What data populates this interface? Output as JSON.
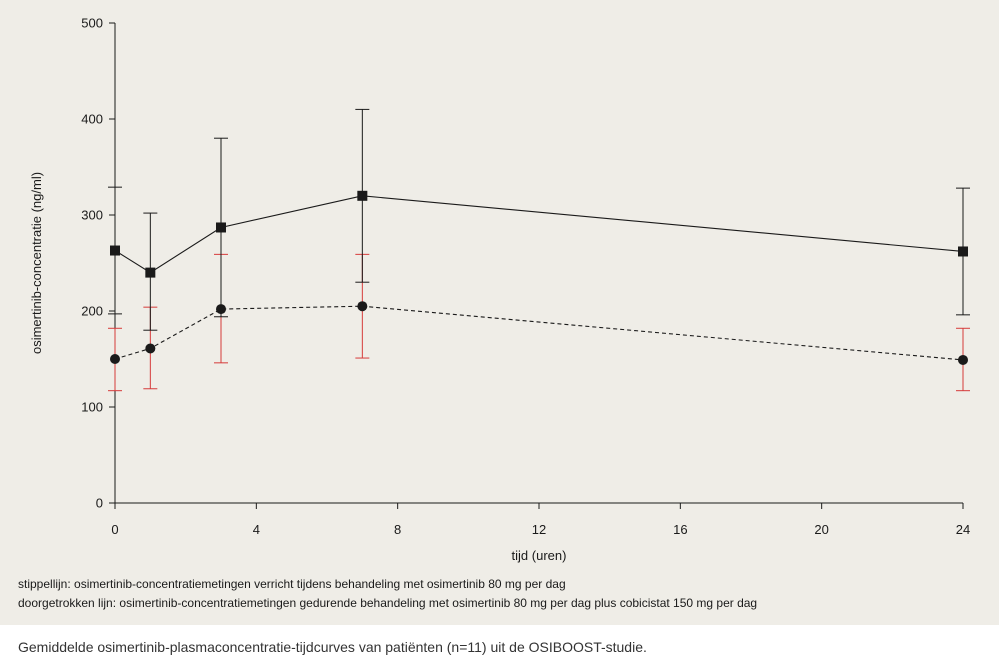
{
  "chart_data": {
    "type": "line",
    "xlabel": "tijd (uren)",
    "ylabel": "osimertinib-concentratie (ng/ml)",
    "xlim": [
      0,
      24
    ],
    "ylim": [
      0,
      500
    ],
    "x_ticks": [
      0,
      4,
      8,
      12,
      16,
      20,
      24
    ],
    "y_ticks": [
      0,
      100,
      200,
      300,
      400,
      500
    ],
    "grid": false,
    "series": [
      {
        "style": "solid",
        "marker": "square",
        "color": "#1a1a1a",
        "errorbar_color": "#1a1a1a",
        "points": [
          {
            "x": 0,
            "y": 263,
            "low": 197,
            "high": 329
          },
          {
            "x": 1,
            "y": 240,
            "low": 180,
            "high": 302
          },
          {
            "x": 3,
            "y": 287,
            "low": 194,
            "high": 380
          },
          {
            "x": 7,
            "y": 320,
            "low": 230,
            "high": 410
          },
          {
            "x": 24,
            "y": 262,
            "low": 196,
            "high": 328
          }
        ]
      },
      {
        "style": "dashed",
        "marker": "circle",
        "color": "#1a1a1a",
        "errorbar_color": "#d63a3a",
        "points": [
          {
            "x": 0,
            "y": 150,
            "low": 117,
            "high": 182
          },
          {
            "x": 1,
            "y": 161,
            "low": 119,
            "high": 204
          },
          {
            "x": 3,
            "y": 202,
            "low": 146,
            "high": 259
          },
          {
            "x": 7,
            "y": 205,
            "low": 151,
            "high": 259
          },
          {
            "x": 24,
            "y": 149,
            "low": 117,
            "high": 182
          }
        ]
      }
    ]
  },
  "notes": {
    "dashed": "stippellijn: osimertinib-concentratiemetingen verricht tijdens behandeling met osimertinib 80 mg per dag",
    "solid": "doorgetrokken lijn: osimertinib-concentratiemetingen gedurende behandeling met osimertinib 80 mg per dag plus cobicistat 150 mg per dag"
  },
  "caption": "Gemiddelde osimertinib-plasmaconcentratie-tijdcurves van patiënten (n=11) uit de OSIBOOST-studie."
}
